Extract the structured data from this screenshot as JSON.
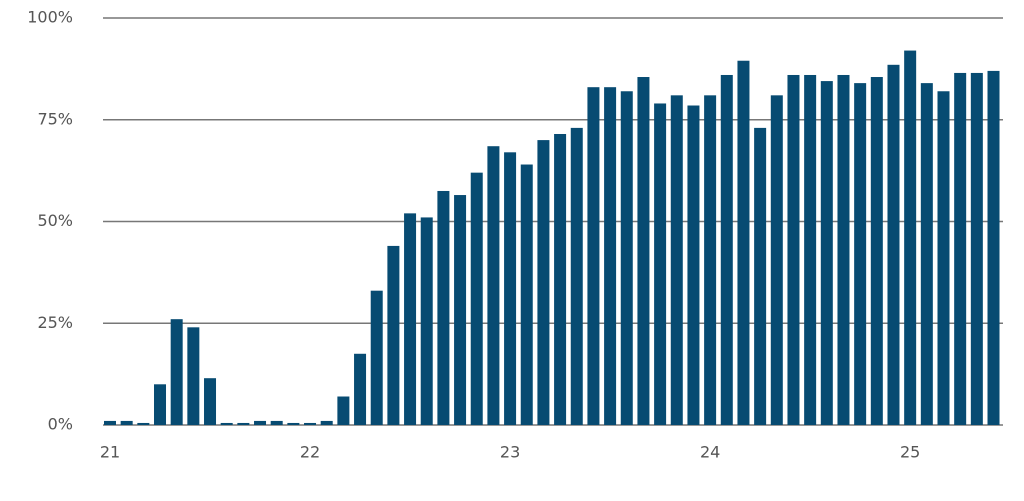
{
  "chart_data": {
    "type": "bar",
    "categories": [
      "21",
      null,
      null,
      null,
      null,
      null,
      null,
      null,
      null,
      null,
      null,
      null,
      "22",
      null,
      null,
      null,
      null,
      null,
      null,
      null,
      null,
      null,
      null,
      null,
      "23",
      null,
      null,
      null,
      null,
      null,
      null,
      null,
      null,
      null,
      null,
      null,
      "24",
      null,
      null,
      null,
      null,
      null,
      null,
      null,
      null,
      null,
      null,
      null,
      "25",
      null,
      null,
      null,
      null,
      null
    ],
    "values": [
      1,
      1,
      0.5,
      10,
      26,
      24,
      11.5,
      0.5,
      0.5,
      1,
      1,
      0.5,
      0.5,
      1,
      7,
      17.5,
      33,
      44,
      52,
      51,
      57.5,
      56.5,
      62,
      68.5,
      67,
      64,
      70,
      71.5,
      73,
      83,
      83,
      82,
      85.5,
      79,
      81,
      78.5,
      81,
      86,
      89.5,
      73,
      81,
      86,
      86,
      84.5,
      86,
      84,
      85.5,
      88.5,
      92,
      84,
      82,
      86.5,
      86.5,
      87
    ],
    "color": "#074b72",
    "ylim": [
      0,
      100
    ],
    "yticks": [
      {
        "value": 0,
        "label": "0%"
      },
      {
        "value": 25,
        "label": "25%"
      },
      {
        "value": 50,
        "label": "50%"
      },
      {
        "value": 75,
        "label": "75%"
      },
      {
        "value": 100,
        "label": "100%"
      }
    ],
    "grid": true
  }
}
